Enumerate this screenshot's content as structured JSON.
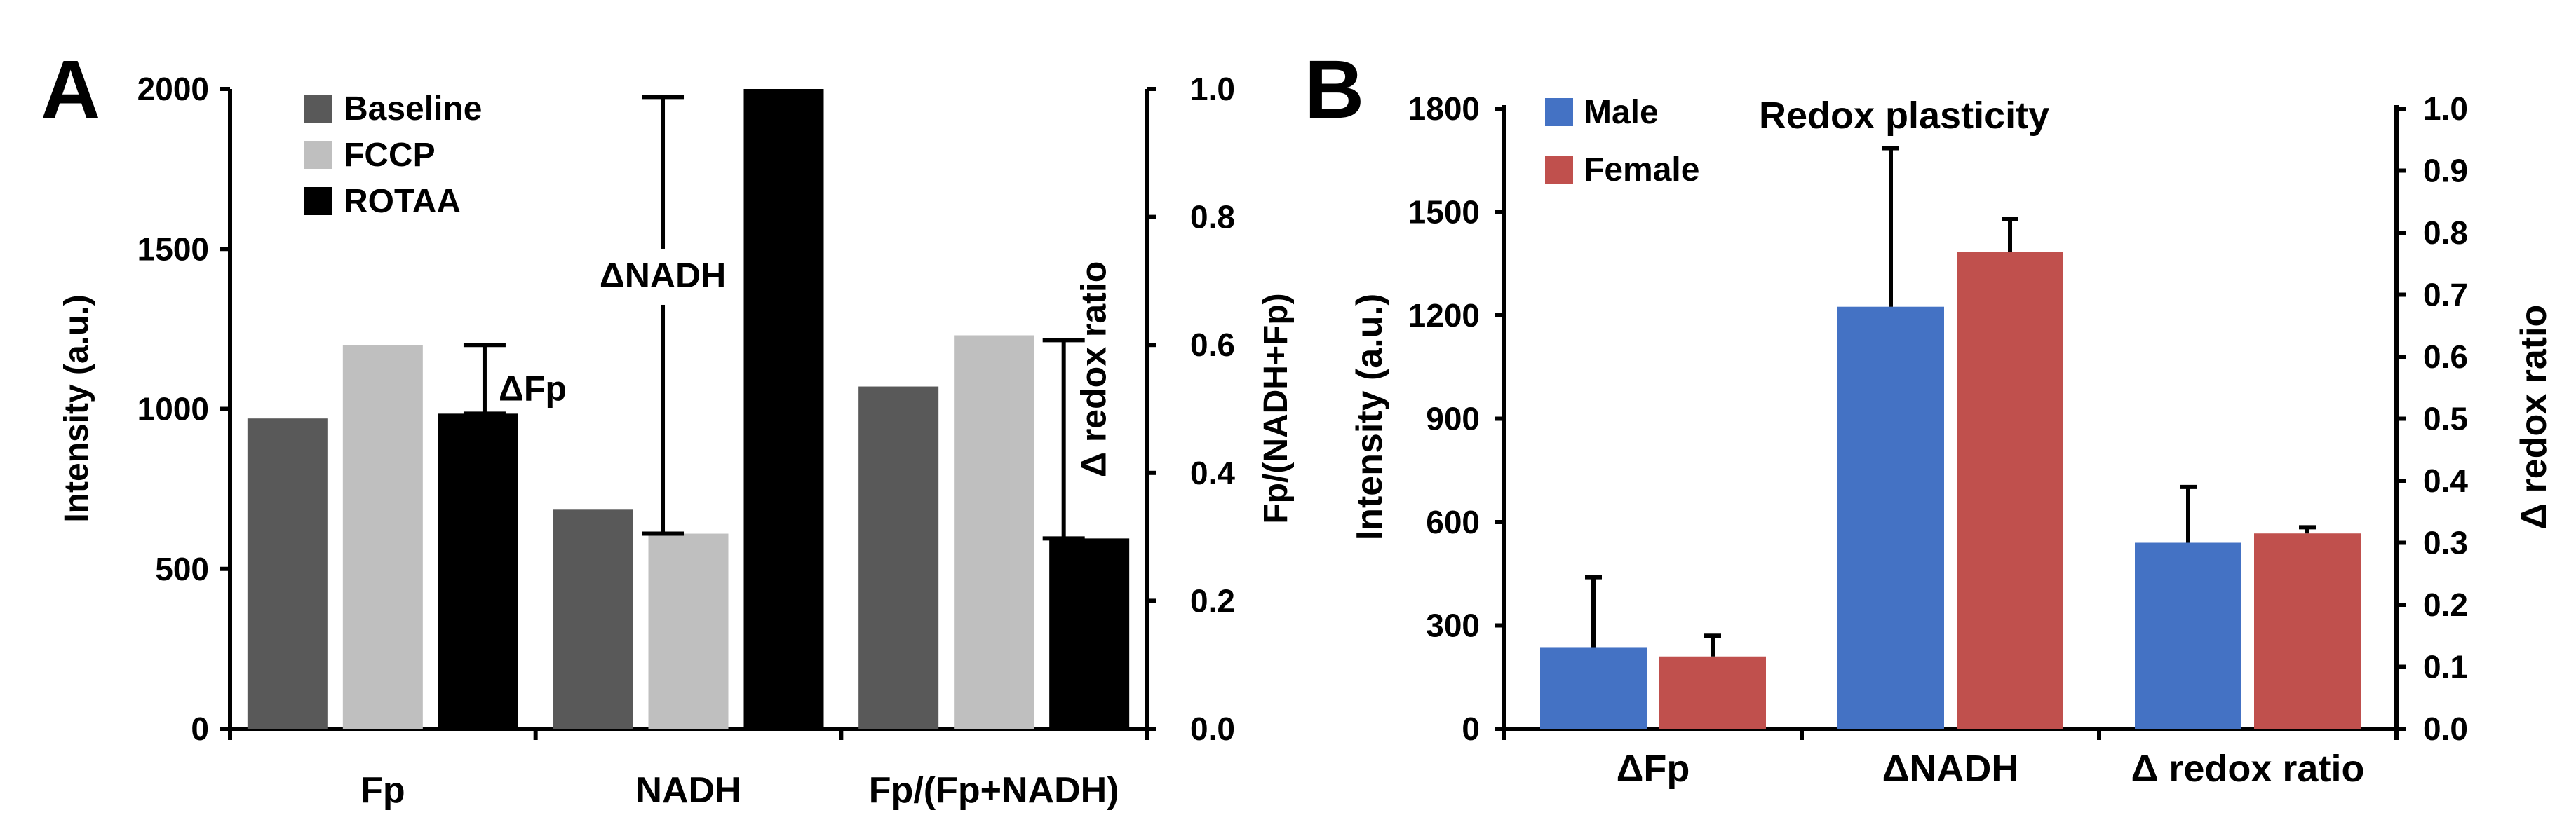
{
  "colors": {
    "baseline": "#595959",
    "fccp": "#bfbfbf",
    "rotaa": "#000000",
    "male": "#4472c4",
    "female": "#c0504d"
  },
  "chart_data": [
    {
      "panel_label": "A",
      "type": "bar",
      "title": "",
      "categories": [
        "Fp",
        "NADH",
        "Fp/(Fp+NADH)"
      ],
      "series": [
        {
          "name": "Baseline",
          "values": [
            970,
            685,
            1070
          ]
        },
        {
          "name": "FCCP",
          "values": [
            1200,
            610,
            1230
          ]
        },
        {
          "name": "ROTAA",
          "values": [
            985,
            2000,
            595
          ]
        }
      ],
      "ylabel": "Intensity (a.u.)",
      "ylim": [
        0,
        2000
      ],
      "yticks": [
        "0",
        "500",
        "1000",
        "1500",
        "2000"
      ],
      "y2label": "Fp/(NADH+Fp)",
      "y2lim": [
        0,
        1
      ],
      "y2ticks": [
        "0.0",
        "0.2",
        "0.4",
        "0.6",
        "0.8",
        "1.0"
      ],
      "annotations": [
        {
          "text": "ΔFp",
          "from": 985,
          "to": 1200
        },
        {
          "text": "ΔNADH",
          "from": 610,
          "to": 1975
        },
        {
          "text": "Δ redox ratio",
          "from": 595,
          "to": 1215
        }
      ],
      "legend": "top-left",
      "grid": false
    },
    {
      "panel_label": "B",
      "type": "bar",
      "title": "Redox plasticity",
      "categories": [
        "ΔFp",
        "ΔNADH",
        "Δ redox ratio"
      ],
      "series": [
        {
          "name": "Male",
          "values": [
            235,
            1225,
            0.3
          ],
          "errors": [
            205,
            460,
            0.09
          ]
        },
        {
          "name": "Female",
          "values": [
            210,
            1385,
            0.315
          ],
          "errors": [
            60,
            95,
            0.01
          ]
        }
      ],
      "ylabel": "Intensity (a.u.)",
      "ylim": [
        0,
        1800
      ],
      "yticks": [
        "0",
        "300",
        "600",
        "900",
        "1200",
        "1500",
        "1800"
      ],
      "y2label": "Δ redox ratio",
      "y2lim": [
        0,
        1
      ],
      "y2ticks": [
        "0.0",
        "0.1",
        "0.2",
        "0.3",
        "0.4",
        "0.5",
        "0.6",
        "0.7",
        "0.8",
        "0.9",
        "1.0"
      ],
      "legend": "top-left",
      "grid": false
    }
  ]
}
